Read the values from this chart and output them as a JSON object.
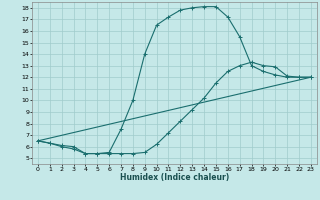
{
  "xlabel": "Humidex (Indice chaleur)",
  "bg_color": "#c5e8e8",
  "grid_color": "#a0cccc",
  "line_color": "#1a6e6e",
  "xlim": [
    -0.5,
    23.5
  ],
  "ylim": [
    4.5,
    18.5
  ],
  "xticks": [
    0,
    1,
    2,
    3,
    4,
    5,
    6,
    7,
    8,
    9,
    10,
    11,
    12,
    13,
    14,
    15,
    16,
    17,
    18,
    19,
    20,
    21,
    22,
    23
  ],
  "yticks": [
    5,
    6,
    7,
    8,
    9,
    10,
    11,
    12,
    13,
    14,
    15,
    16,
    17,
    18
  ],
  "curve1_x": [
    0,
    1,
    2,
    3,
    4,
    5,
    6,
    7,
    8,
    9,
    10,
    11,
    12,
    13,
    14,
    15,
    16,
    17,
    18,
    19,
    20,
    21,
    22,
    23
  ],
  "curve1_y": [
    6.5,
    6.3,
    6.0,
    5.8,
    5.4,
    5.4,
    5.5,
    7.5,
    10.0,
    14.0,
    16.5,
    17.2,
    17.8,
    18.0,
    18.1,
    18.1,
    17.2,
    15.5,
    13.0,
    12.5,
    12.2,
    12.0,
    12.0,
    12.0
  ],
  "curve2_x": [
    0,
    1,
    2,
    3,
    4,
    5,
    6,
    7,
    8,
    9,
    10,
    11,
    12,
    13,
    14,
    15,
    16,
    17,
    18,
    19,
    20,
    21,
    22,
    23
  ],
  "curve2_y": [
    6.5,
    6.3,
    6.1,
    6.0,
    5.4,
    5.4,
    5.4,
    5.4,
    5.4,
    5.5,
    6.2,
    7.2,
    8.2,
    9.2,
    10.2,
    11.5,
    12.5,
    13.0,
    13.3,
    13.0,
    12.9,
    12.1,
    12.0,
    12.0
  ],
  "curve3_x": [
    0,
    23
  ],
  "curve3_y": [
    6.5,
    12.0
  ]
}
